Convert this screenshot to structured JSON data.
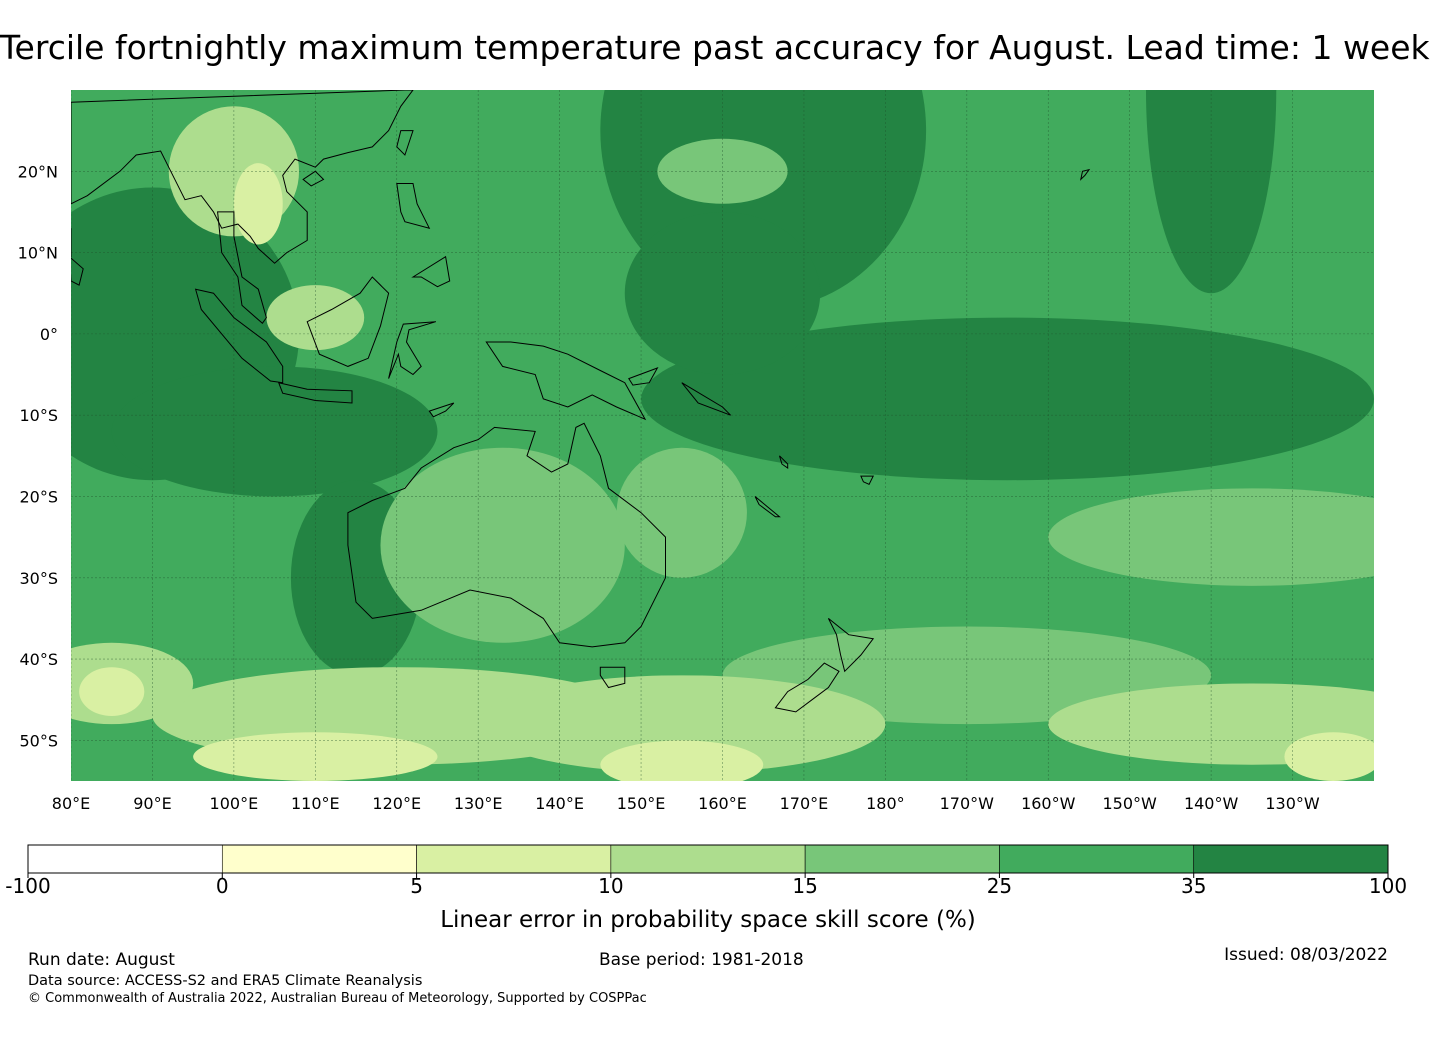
{
  "title": "Tercile fortnightly maximum temperature past accuracy for August. Lead time: 1 week",
  "map": {
    "lat_labels": [
      "20°N",
      "10°N",
      "0°",
      "10°S",
      "20°S",
      "30°S",
      "40°S",
      "50°S"
    ],
    "lat_values": [
      20,
      10,
      0,
      -10,
      -20,
      -30,
      -40,
      -50
    ],
    "lon_labels": [
      "80°E",
      "90°E",
      "100°E",
      "110°E",
      "120°E",
      "130°E",
      "140°E",
      "150°E",
      "160°E",
      "170°E",
      "180°",
      "170°W",
      "160°W",
      "150°W",
      "140°W",
      "130°W"
    ],
    "lon_values": [
      80,
      90,
      100,
      110,
      120,
      130,
      140,
      150,
      160,
      170,
      180,
      190,
      200,
      210,
      220,
      230
    ],
    "lon_range": [
      80,
      240
    ],
    "lat_range": [
      -55,
      30
    ]
  },
  "colorbar": {
    "ticks": [
      "-100",
      "0",
      "5",
      "10",
      "15",
      "25",
      "35",
      "100"
    ],
    "colors": [
      "#ffffff",
      "#ffffcc",
      "#d9f0a3",
      "#addd8e",
      "#78c679",
      "#41ab5d",
      "#238443"
    ],
    "label": "Linear error in probability space skill score (%)"
  },
  "footer": {
    "run_date": "Run date: August",
    "base_period": "Base period: 1981-2018",
    "issued": "Issued: 08/03/2022",
    "data_source": "Data source: ACCESS-S2 and ERA5 Climate Reanalysis",
    "copyright": "© Commonwealth of Australia 2022, Australian Bureau of Meteorology, Supported by COSPPac"
  }
}
